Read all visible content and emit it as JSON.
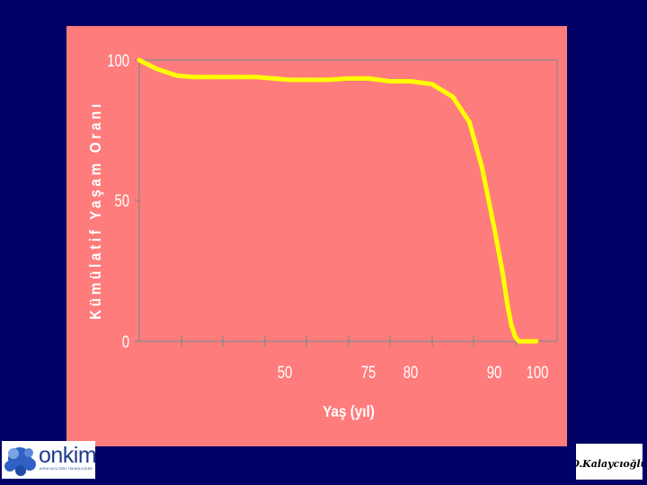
{
  "chart_data": {
    "type": "line",
    "xlabel": "Yaş (yıl)",
    "ylabel": "Kümülatif Yaşam Oranı",
    "ylim": [
      0,
      100
    ],
    "xlim": [
      0,
      100
    ],
    "x_tick_labels": [
      "50",
      "75",
      "80",
      "90",
      "100"
    ],
    "y_tick_labels": [
      "100",
      "50",
      "0"
    ],
    "grid": false,
    "series": [
      {
        "color": "#ffff00",
        "x": [
          0,
          4,
          9,
          13,
          18,
          23,
          28,
          32,
          36,
          40,
          45,
          50,
          55,
          60,
          65,
          70,
          75,
          79,
          82,
          85,
          87,
          88,
          89,
          90,
          90.5,
          91,
          92,
          93,
          94,
          95
        ],
        "y": [
          100,
          97,
          94.5,
          94,
          94,
          94,
          94,
          93.5,
          93,
          93,
          93,
          93.5,
          93.5,
          92.5,
          92.5,
          91.5,
          87,
          78,
          62,
          40,
          24,
          14,
          6,
          1.5,
          0.5,
          0,
          0,
          0,
          0,
          0
        ]
      }
    ],
    "colors": {
      "background": "#000066",
      "panel": "#ff7c7c",
      "curve": "#ffff00",
      "axis": "#888888"
    }
  },
  "logos": {
    "left_brand": "onkim",
    "left_tagline": "KORUYUCU ÖZEL TEKNOLOJİLER",
    "right_signature": "O.Kalaycıoğlu"
  }
}
